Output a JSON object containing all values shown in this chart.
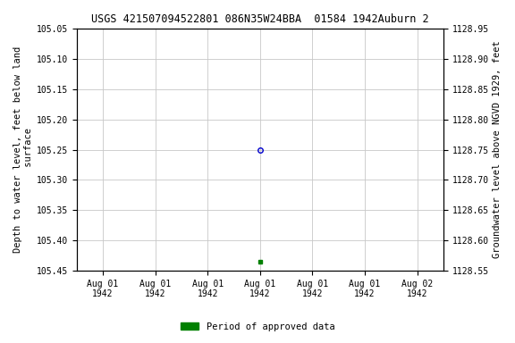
{
  "title": "USGS 421507094522801 086N35W24BBA  01584 1942Auburn 2",
  "ylabel_left": "Depth to water level, feet below land\n surface",
  "ylabel_right": "Groundwater level above NGVD 1929, feet",
  "ylim_left": [
    105.05,
    105.45
  ],
  "ylim_right": [
    1128.95,
    1128.55
  ],
  "yticks_left": [
    105.05,
    105.1,
    105.15,
    105.2,
    105.25,
    105.3,
    105.35,
    105.4,
    105.45
  ],
  "yticks_right": [
    1128.95,
    1128.9,
    1128.85,
    1128.8,
    1128.75,
    1128.7,
    1128.65,
    1128.6,
    1128.55
  ],
  "ytick_labels_right": [
    "1128.95",
    "1128.90",
    "1128.85",
    "1128.80",
    "1128.75",
    "1128.70",
    "1128.65",
    "1128.60",
    "1128.55"
  ],
  "x_numeric": true,
  "xlim": [
    -0.5,
    6.5
  ],
  "xtick_positions": [
    0,
    1,
    2,
    3,
    4,
    5,
    6
  ],
  "xtick_labels": [
    "Aug 01\n1942",
    "Aug 01\n1942",
    "Aug 01\n1942",
    "Aug 01\n1942",
    "Aug 01\n1942",
    "Aug 01\n1942",
    "Aug 02\n1942"
  ],
  "data_point_x": 3,
  "data_point_depth": 105.25,
  "data_point_color": "#0000cc",
  "green_point_x": 3,
  "green_point_depth": 105.435,
  "green_point_color": "#008000",
  "bg_color": "#ffffff",
  "grid_color": "#c8c8c8",
  "font_family": "monospace",
  "title_fontsize": 8.5,
  "label_fontsize": 7.5,
  "tick_fontsize": 7,
  "legend_label": "Period of approved data",
  "legend_color": "#008000"
}
